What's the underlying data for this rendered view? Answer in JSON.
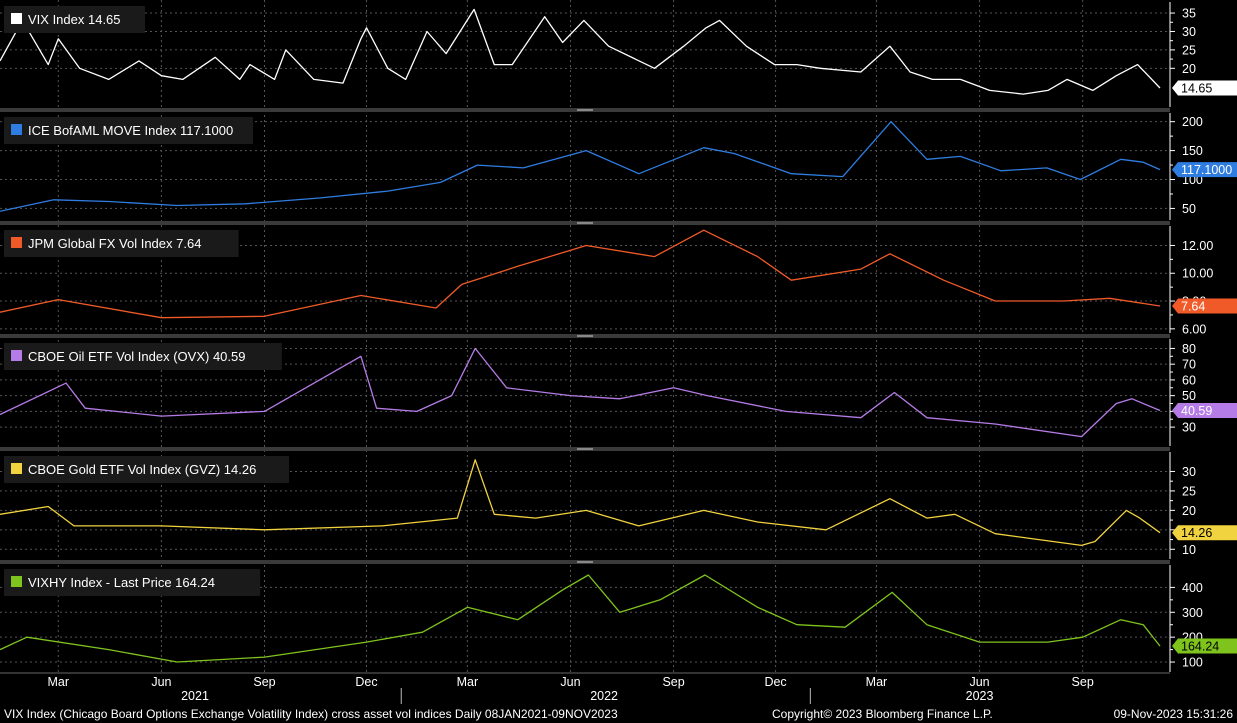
{
  "footer": {
    "description": "VIX Index (Chicago Board Options Exchange Volatility Index) cross asset vol indices  Daily 08JAN2021-09NOV2023",
    "copyright": "Copyright© 2023 Bloomberg Finance L.P.",
    "timestamp": "09-Nov-2023 15:31:26"
  },
  "colors": {
    "background": "#000000",
    "grid": "#555555",
    "separator": "#3a3a3a"
  },
  "chart_data": [
    {
      "type": "line",
      "name": "VIX Index",
      "legend": "VIX Index 14.65",
      "color": "#ffffff",
      "last_label": "14.65",
      "last_label_text_color": "#000000",
      "ylim": [
        9.5,
        38
      ],
      "yticks": [
        20,
        25,
        30,
        35
      ],
      "ytick_labels": [
        "20",
        "25",
        "30",
        "35"
      ],
      "x": [
        "2021-01-08",
        "2021-01-28",
        "2021-02-20",
        "2021-03-01",
        "2021-03-20",
        "2021-04-15",
        "2021-05-12",
        "2021-06-01",
        "2021-06-20",
        "2021-07-19",
        "2021-08-10",
        "2021-08-19",
        "2021-09-10",
        "2021-09-20",
        "2021-10-15",
        "2021-11-10",
        "2021-11-26",
        "2021-12-01",
        "2021-12-20",
        "2022-01-05",
        "2022-01-24",
        "2022-02-10",
        "2022-03-07",
        "2022-03-25",
        "2022-04-10",
        "2022-05-09",
        "2022-05-25",
        "2022-06-13",
        "2022-07-05",
        "2022-08-15",
        "2022-09-10",
        "2022-09-30",
        "2022-10-12",
        "2022-11-05",
        "2022-11-30",
        "2022-12-20",
        "2023-01-10",
        "2023-02-15",
        "2023-03-13",
        "2023-03-31",
        "2023-04-20",
        "2023-05-15",
        "2023-06-10",
        "2023-07-10",
        "2023-08-01",
        "2023-08-18",
        "2023-09-10",
        "2023-10-01",
        "2023-10-20",
        "2023-11-09"
      ],
      "values": [
        22,
        33,
        21,
        28,
        20,
        17,
        22,
        18,
        17,
        23,
        17,
        21,
        17,
        25,
        17,
        16,
        28,
        31,
        20,
        17,
        30,
        24,
        36,
        21,
        21,
        34,
        27,
        33,
        26,
        20,
        26,
        31,
        33,
        26,
        21,
        21,
        20,
        19,
        26,
        19,
        17,
        17,
        14,
        13,
        14,
        17,
        14,
        18,
        21,
        14.65
      ]
    },
    {
      "type": "line",
      "name": "ICE BofAML MOVE Index",
      "legend": "ICE BofAML MOVE Index 117.1000",
      "color": "#2f7de1",
      "last_label": "117.1000",
      "last_label_text_color": "#ffffff",
      "ylim": [
        30,
        215
      ],
      "yticks": [
        50,
        100,
        150,
        200
      ],
      "ytick_labels": [
        "50",
        "100",
        "150",
        "200"
      ],
      "x": [
        "2021-01-08",
        "2021-02-25",
        "2021-04-15",
        "2021-06-15",
        "2021-08-15",
        "2021-10-20",
        "2021-12-20",
        "2022-02-05",
        "2022-03-10",
        "2022-04-20",
        "2022-06-15",
        "2022-08-01",
        "2022-09-28",
        "2022-10-25",
        "2022-12-15",
        "2023-01-30",
        "2023-03-14",
        "2023-04-15",
        "2023-05-15",
        "2023-06-20",
        "2023-07-31",
        "2023-08-30",
        "2023-10-05",
        "2023-10-25",
        "2023-11-09"
      ],
      "values": [
        45,
        65,
        62,
        55,
        58,
        68,
        80,
        95,
        125,
        120,
        150,
        110,
        155,
        145,
        110,
        105,
        200,
        135,
        140,
        115,
        120,
        100,
        135,
        130,
        117.1
      ]
    },
    {
      "type": "line",
      "name": "JPM Global FX Vol Index",
      "legend": "JPM Global FX Vol Index 7.64",
      "color": "#f05a28",
      "last_label": "7.64",
      "last_label_text_color": "#ffffff",
      "ylim": [
        5.7,
        13.4
      ],
      "yticks": [
        6,
        8,
        10,
        12
      ],
      "ytick_labels": [
        "6.00",
        "8.00",
        "10.00",
        "12.00"
      ],
      "x": [
        "2021-01-08",
        "2021-03-01",
        "2021-06-01",
        "2021-09-01",
        "2021-11-26",
        "2022-02-01",
        "2022-02-24",
        "2022-04-15",
        "2022-06-15",
        "2022-08-15",
        "2022-09-28",
        "2022-11-15",
        "2022-12-15",
        "2023-02-15",
        "2023-03-13",
        "2023-04-30",
        "2023-06-15",
        "2023-08-15",
        "2023-09-25",
        "2023-11-09"
      ],
      "values": [
        7.2,
        8.1,
        6.8,
        6.9,
        8.4,
        7.5,
        9.2,
        10.5,
        12.0,
        11.2,
        13.1,
        11.2,
        9.5,
        10.3,
        11.4,
        9.5,
        8.0,
        8.0,
        8.2,
        7.64
      ]
    },
    {
      "type": "line",
      "name": "CBOE Oil ETF Vol Index (OVX)",
      "legend": "CBOE Oil ETF Vol Index (OVX) 40.59",
      "color": "#b57be6",
      "last_label": "40.59",
      "last_label_text_color": "#ffffff",
      "ylim": [
        18,
        86
      ],
      "yticks": [
        30,
        40,
        50,
        60,
        70,
        80
      ],
      "ytick_labels": [
        "30",
        "40",
        "50",
        "60",
        "70",
        "80"
      ],
      "x": [
        "2021-01-08",
        "2021-03-08",
        "2021-03-25",
        "2021-06-01",
        "2021-09-01",
        "2021-11-26",
        "2021-12-10",
        "2022-01-15",
        "2022-02-15",
        "2022-03-08",
        "2022-04-05",
        "2022-06-01",
        "2022-07-15",
        "2022-09-01",
        "2022-10-01",
        "2022-12-10",
        "2023-02-15",
        "2023-03-17",
        "2023-04-15",
        "2023-06-15",
        "2023-08-31",
        "2023-10-01",
        "2023-10-15",
        "2023-11-09"
      ],
      "values": [
        38,
        58,
        42,
        37,
        40,
        75,
        42,
        40,
        50,
        80,
        55,
        50,
        48,
        55,
        50,
        40,
        36,
        52,
        36,
        32,
        24,
        45,
        48,
        40.59
      ]
    },
    {
      "type": "line",
      "name": "CBOE Gold ETF Vol Index (GVZ)",
      "legend": "CBOE Gold ETF Vol Index (GVZ) 14.26",
      "color": "#f1d23f",
      "last_label": "14.26",
      "last_label_text_color": "#000000",
      "ylim": [
        7.5,
        35
      ],
      "yticks": [
        10,
        15,
        20,
        25,
        30
      ],
      "ytick_labels": [
        "10",
        "15",
        "20",
        "25",
        "30"
      ],
      "x": [
        "2021-01-08",
        "2021-02-20",
        "2021-03-15",
        "2021-06-01",
        "2021-09-01",
        "2021-12-15",
        "2022-02-20",
        "2022-03-08",
        "2022-03-25",
        "2022-05-01",
        "2022-06-15",
        "2022-08-01",
        "2022-09-28",
        "2022-11-15",
        "2023-01-15",
        "2023-03-13",
        "2023-04-15",
        "2023-05-10",
        "2023-06-15",
        "2023-08-31",
        "2023-09-12",
        "2023-10-10",
        "2023-10-22",
        "2023-11-09"
      ],
      "values": [
        19,
        21,
        16,
        16,
        15,
        16,
        18,
        33,
        19,
        18,
        20,
        16,
        20,
        17,
        15,
        23,
        18,
        19,
        14,
        11,
        12,
        20,
        18,
        14.26
      ]
    },
    {
      "type": "line",
      "name": "VIXHY Index - Last Price",
      "legend": "VIXHY Index - Last Price 164.24",
      "color": "#7fc41d",
      "last_label": "164.24",
      "last_label_text_color": "#000000",
      "ylim": [
        60,
        490
      ],
      "yticks": [
        100,
        200,
        300,
        400
      ],
      "ytick_labels": [
        "100",
        "200",
        "300",
        "400"
      ],
      "x": [
        "2021-01-08",
        "2021-02-01",
        "2021-04-15",
        "2021-06-15",
        "2021-09-01",
        "2021-12-01",
        "2022-01-20",
        "2022-03-01",
        "2022-04-15",
        "2022-05-25",
        "2022-06-17",
        "2022-07-15",
        "2022-08-20",
        "2022-09-29",
        "2022-11-15",
        "2022-12-20",
        "2023-02-01",
        "2023-03-15",
        "2023-04-15",
        "2023-06-01",
        "2023-08-01",
        "2023-09-01",
        "2023-10-05",
        "2023-10-25",
        "2023-11-09"
      ],
      "values": [
        150,
        200,
        150,
        100,
        120,
        180,
        220,
        320,
        270,
        390,
        450,
        300,
        350,
        450,
        320,
        250,
        240,
        380,
        250,
        180,
        180,
        200,
        270,
        250,
        164.24
      ]
    }
  ],
  "x_axis": {
    "months": [
      {
        "label": "Mar",
        "date": "2021-03-01"
      },
      {
        "label": "Jun",
        "date": "2021-06-01"
      },
      {
        "label": "Sep",
        "date": "2021-09-01"
      },
      {
        "label": "Dec",
        "date": "2021-12-01"
      },
      {
        "label": "Mar",
        "date": "2022-03-01"
      },
      {
        "label": "Jun",
        "date": "2022-06-01"
      },
      {
        "label": "Sep",
        "date": "2022-09-01"
      },
      {
        "label": "Dec",
        "date": "2022-12-01"
      },
      {
        "label": "Mar",
        "date": "2023-03-01"
      },
      {
        "label": "Jun",
        "date": "2023-06-01"
      },
      {
        "label": "Sep",
        "date": "2023-09-01"
      }
    ],
    "years": [
      {
        "label": "2021",
        "date": "2021-07-01"
      },
      {
        "label": "2022",
        "date": "2022-07-01"
      },
      {
        "label": "2023",
        "date": "2023-06-01"
      }
    ],
    "year_boundaries": [
      "2022-01-01",
      "2023-01-01"
    ],
    "range": [
      "2021-01-08",
      "2023-11-09"
    ]
  }
}
